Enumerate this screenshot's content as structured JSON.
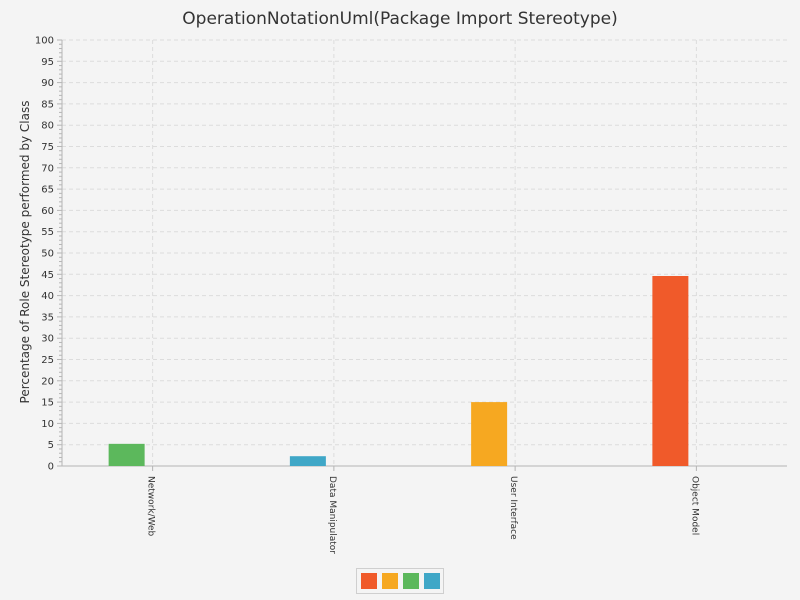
{
  "chart_data": {
    "type": "bar",
    "title": "OperationNotationUml(Package Import Stereotype)",
    "ylabel": "Percentage of Role Stereotype performed by Class",
    "xlabel": "",
    "ylim": [
      0,
      100
    ],
    "y_ticks": [
      0,
      5,
      10,
      15,
      20,
      25,
      30,
      35,
      40,
      45,
      50,
      55,
      60,
      65,
      70,
      75,
      80,
      85,
      90,
      95,
      100
    ],
    "categories": [
      "Network/Web",
      "Data Manipulator",
      "User Interface",
      "Object Model"
    ],
    "values": [
      5.2,
      2.3,
      15.0,
      44.6
    ],
    "colors": [
      "#5cb85c",
      "#3fa7c7",
      "#f6a821",
      "#f05a2a"
    ],
    "grid": true,
    "legend": {
      "placement": "bottom-center",
      "colors": [
        "#f05a2a",
        "#f6a821",
        "#5cb85c",
        "#3fa7c7"
      ]
    }
  }
}
